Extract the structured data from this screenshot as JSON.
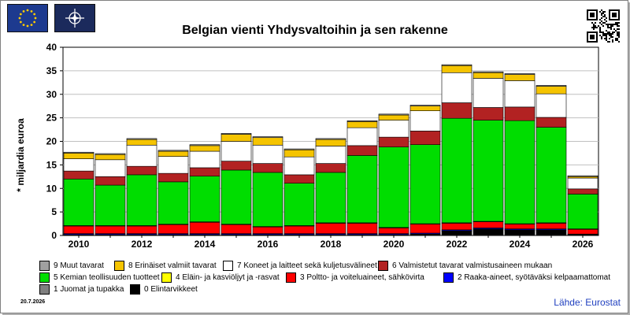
{
  "title": "Belgian vienti Yhdysvaltoihin ja sen rakenne",
  "ylabel": "* miljardia euroa",
  "date": "20.7.2026",
  "source": "Lähde: Eurostat",
  "icons": {
    "eu_flag": "eu-flag-icon",
    "nato_flag": "nato-flag-icon",
    "qr": "qr-code-icon"
  },
  "chart_data": {
    "type": "bar",
    "stacked": true,
    "ylim": [
      0,
      40
    ],
    "yticks": [
      0,
      5,
      10,
      15,
      20,
      25,
      30,
      35,
      40
    ],
    "grid": true,
    "legend_position": "bottom",
    "categories": [
      "2010",
      "2011",
      "2012",
      "2013",
      "2014",
      "2015",
      "2016",
      "2017",
      "2018",
      "2019",
      "2020",
      "2021",
      "2022",
      "2023",
      "2024",
      "2025",
      "2026"
    ],
    "xtick_labels": [
      "2010",
      "2012",
      "2014",
      "2016",
      "2018",
      "2020",
      "2022",
      "2024",
      "2026"
    ],
    "series": [
      {
        "name": "0 Elintarvikkeet",
        "color": "#000000",
        "values": [
          0.1,
          0.1,
          0.1,
          0.1,
          0.1,
          0.1,
          0.1,
          0.1,
          0.1,
          0.1,
          0.1,
          0.2,
          0.9,
          1.3,
          1.1,
          1.1,
          0.1
        ]
      },
      {
        "name": "1 Juomat ja tupakka",
        "color": "#808080",
        "values": [
          0.1,
          0.1,
          0.1,
          0.1,
          0.1,
          0.1,
          0.1,
          0.1,
          0.1,
          0.1,
          0.1,
          0.1,
          0.1,
          0.1,
          0.1,
          0.1,
          0.1
        ]
      },
      {
        "name": "2 Raaka-aineet, syötäväksi kelpaamattomat",
        "color": "#0000ff",
        "values": [
          0.2,
          0.2,
          0.2,
          0.2,
          0.2,
          0.2,
          0.2,
          0.2,
          0.2,
          0.2,
          0.2,
          0.2,
          0.2,
          0.2,
          0.2,
          0.2,
          0.1
        ]
      },
      {
        "name": "3 Poltto- ja voiteluaineet, sähkövirta",
        "color": "#ff0000",
        "values": [
          1.6,
          1.6,
          1.6,
          1.9,
          2.4,
          1.9,
          1.4,
          1.6,
          2.2,
          2.2,
          1.2,
          1.9,
          1.4,
          1.3,
          1.0,
          1.2,
          1.0
        ]
      },
      {
        "name": "4 Eläin- ja kasviöljyt ja -rasvat",
        "color": "#ffff00",
        "values": [
          0.1,
          0.1,
          0.1,
          0.1,
          0.1,
          0.1,
          0.1,
          0.1,
          0.1,
          0.1,
          0.1,
          0.1,
          0.1,
          0.1,
          0.1,
          0.1,
          0.1
        ]
      },
      {
        "name": "5 Kemian teollisuuden tuotteet",
        "color": "#00dd00",
        "values": [
          9.9,
          8.6,
          10.8,
          9.0,
          9.7,
          11.5,
          11.5,
          9.0,
          10.7,
          14.3,
          17.1,
          16.8,
          22.2,
          21.5,
          21.9,
          20.3,
          7.4
        ]
      },
      {
        "name": "6 Valmistetut tavarat valmistusaineen mukaan",
        "color": "#b22222",
        "values": [
          1.7,
          1.8,
          1.8,
          1.8,
          1.8,
          1.9,
          1.9,
          1.8,
          1.9,
          2.1,
          2.1,
          2.9,
          3.3,
          2.7,
          2.9,
          2.1,
          1.1
        ]
      },
      {
        "name": "7 Koneet ja laitteet sekä kuljetusvälineet",
        "color": "#ffffff",
        "values": [
          2.6,
          3.6,
          4.5,
          3.6,
          3.5,
          4.2,
          3.9,
          3.8,
          3.7,
          3.8,
          3.6,
          4.3,
          6.4,
          6.2,
          5.6,
          5.0,
          2.3
        ]
      },
      {
        "name": "8 Erinäiset valmiit tavarat",
        "color": "#f5c400",
        "values": [
          1.2,
          1.1,
          1.2,
          1.1,
          1.2,
          1.5,
          1.6,
          1.5,
          1.4,
          1.3,
          1.1,
          1.0,
          1.5,
          1.2,
          1.3,
          1.6,
          0.3
        ]
      },
      {
        "name": "9 Muut tavarat",
        "color": "#a0a0a0",
        "values": [
          0.2,
          0.2,
          0.2,
          0.2,
          0.2,
          0.2,
          0.2,
          0.2,
          0.2,
          0.2,
          0.2,
          0.2,
          0.2,
          0.2,
          0.2,
          0.2,
          0.2
        ]
      }
    ]
  },
  "legend_order": [
    {
      "name": "9 Muut tavarat",
      "color": "#a0a0a0"
    },
    {
      "name": "8 Erinäiset valmiit tavarat",
      "color": "#f5c400"
    },
    {
      "name": "7 Koneet ja laitteet sekä kuljetusvälineet",
      "color": "#ffffff"
    },
    {
      "name": "6 Valmistetut tavarat valmistusaineen mukaan",
      "color": "#b22222"
    },
    {
      "name": "5 Kemian teollisuuden tuotteet",
      "color": "#00dd00"
    },
    {
      "name": "4 Eläin- ja kasviöljyt ja -rasvat",
      "color": "#ffff00"
    },
    {
      "name": "3 Poltto- ja voiteluaineet, sähkövirta",
      "color": "#ff0000"
    },
    {
      "name": "2 Raaka-aineet, syötäväksi kelpaamattomat",
      "color": "#0000ff"
    },
    {
      "name": "1 Juomat ja tupakka",
      "color": "#808080"
    },
    {
      "name": "0 Elintarvikkeet",
      "color": "#000000"
    }
  ]
}
